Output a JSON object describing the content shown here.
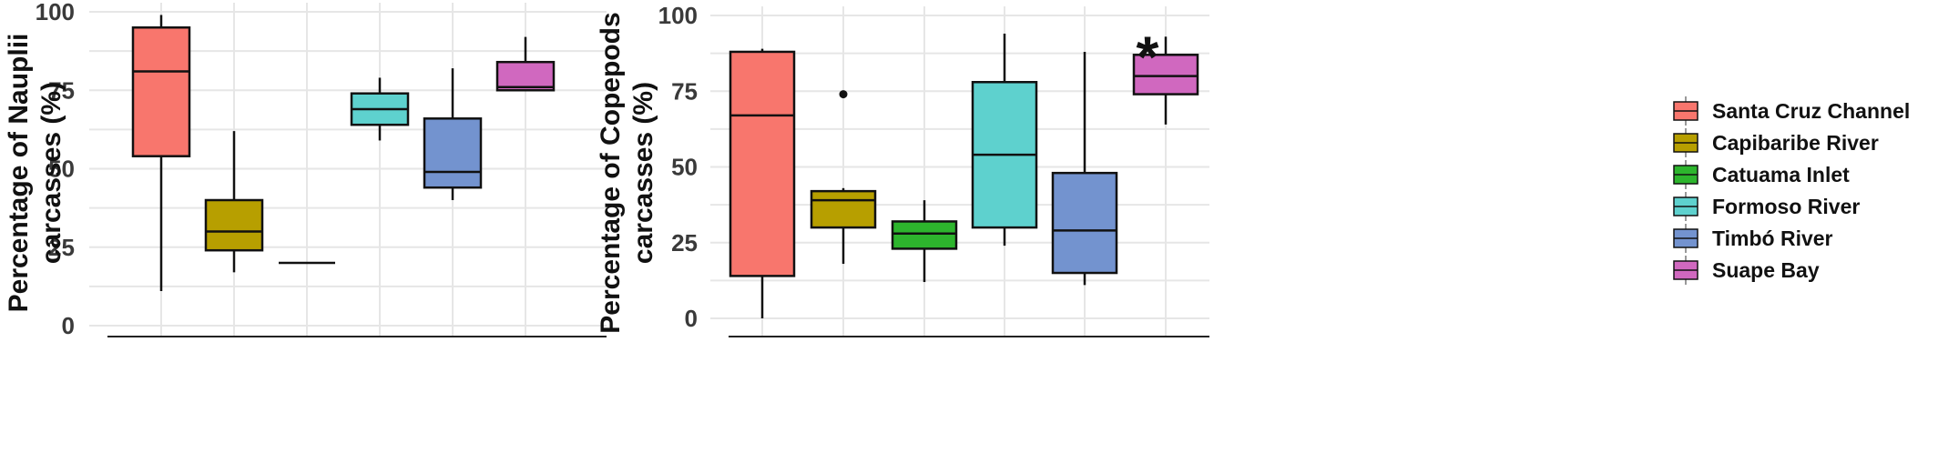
{
  "legend": {
    "items": [
      {
        "label": "Santa Cruz Channel",
        "color": "#F8766D"
      },
      {
        "label": "Capibaribe River",
        "color": "#B79F00"
      },
      {
        "label": "Catuama Inlet",
        "color": "#2DB52D"
      },
      {
        "label": "Formoso River",
        "color": "#5ED1CE"
      },
      {
        "label": "Timbó River",
        "color": "#7393CF"
      },
      {
        "label": "Suape Bay",
        "color": "#D068BF"
      }
    ]
  },
  "chart_data": [
    {
      "type": "box",
      "ylabel_line1": "Percentage of Nauplii",
      "ylabel_line2": "carcasses (%)",
      "ylim": [
        0,
        100
      ],
      "yticks": [
        "0",
        "25",
        "50",
        "75",
        "100"
      ],
      "grid": true,
      "categories": [
        "Santa Cruz Channel",
        "Capibaribe River",
        "Catuama Inlet",
        "Formoso River",
        "Timbó River",
        "Suape Bay"
      ],
      "boxes": [
        {
          "whisker_low": 11,
          "q1": 54,
          "median": 81,
          "q3": 95,
          "whisker_high": 99,
          "outliers": []
        },
        {
          "whisker_low": 17,
          "q1": 24,
          "median": 30,
          "q3": 40,
          "whisker_high": 62,
          "outliers": []
        },
        {
          "whisker_low": 20,
          "q1": 20,
          "median": 20,
          "q3": 20,
          "whisker_high": 20,
          "outliers": []
        },
        {
          "whisker_low": 59,
          "q1": 64,
          "median": 69,
          "q3": 74,
          "whisker_high": 79,
          "outliers": []
        },
        {
          "whisker_low": 40,
          "q1": 44,
          "median": 49,
          "q3": 66,
          "whisker_high": 82,
          "outliers": []
        },
        {
          "whisker_low": 75,
          "q1": 75,
          "median": 76,
          "q3": 84,
          "whisker_high": 92,
          "outliers": []
        }
      ],
      "annotations": []
    },
    {
      "type": "box",
      "ylabel_line1": "Percentage of Copepods",
      "ylabel_line2": "carcasses (%)",
      "ylim": [
        0,
        100
      ],
      "yticks": [
        "0",
        "25",
        "50",
        "75",
        "100"
      ],
      "grid": true,
      "categories": [
        "Santa Cruz Channel",
        "Capibaribe River",
        "Catuama Inlet",
        "Formoso River",
        "Timbó River",
        "Suape Bay"
      ],
      "boxes": [
        {
          "whisker_low": 0,
          "q1": 14,
          "median": 67,
          "q3": 88,
          "whisker_high": 89,
          "outliers": []
        },
        {
          "whisker_low": 18,
          "q1": 30,
          "median": 39,
          "q3": 42,
          "whisker_high": 43,
          "outliers": [
            74
          ]
        },
        {
          "whisker_low": 12,
          "q1": 23,
          "median": 28,
          "q3": 32,
          "whisker_high": 39,
          "outliers": []
        },
        {
          "whisker_low": 24,
          "q1": 30,
          "median": 54,
          "q3": 78,
          "whisker_high": 94,
          "outliers": []
        },
        {
          "whisker_low": 11,
          "q1": 15,
          "median": 29,
          "q3": 48,
          "whisker_high": 88,
          "outliers": []
        },
        {
          "whisker_low": 64,
          "q1": 74,
          "median": 80,
          "q3": 87,
          "whisker_high": 93,
          "outliers": []
        }
      ],
      "annotations": [
        {
          "category_index": 5,
          "text": "*"
        }
      ]
    }
  ]
}
